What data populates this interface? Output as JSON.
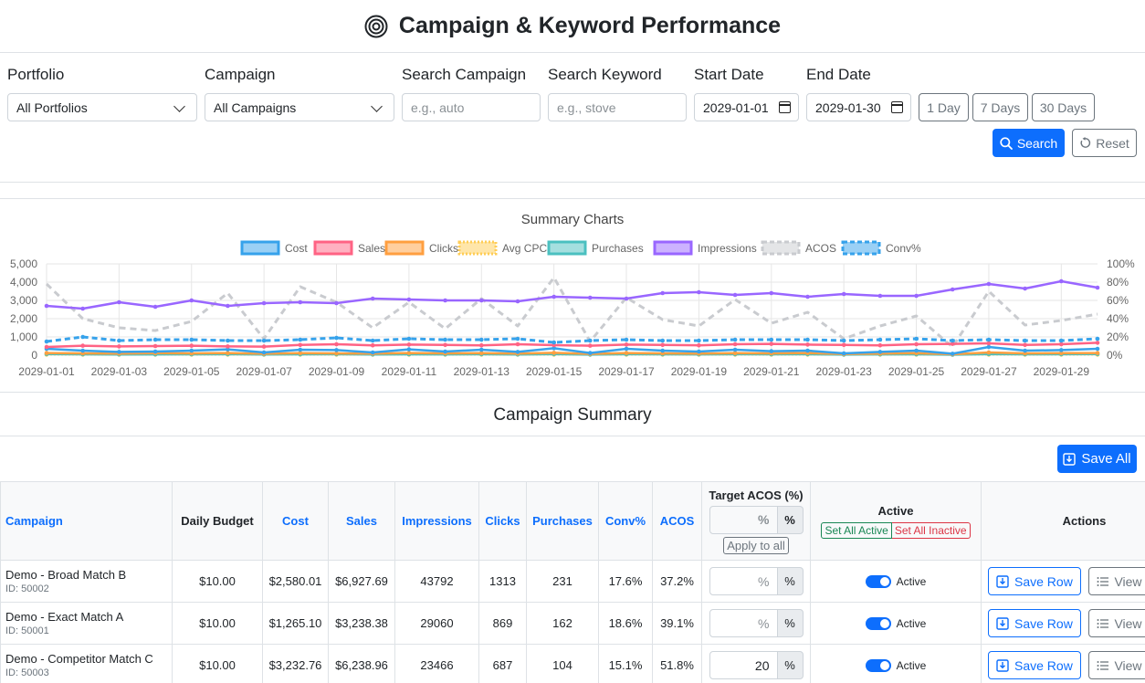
{
  "header": {
    "title": "Campaign & Keyword Performance"
  },
  "filters": {
    "portfolio_label": "Portfolio",
    "portfolio_value": "All Portfolios",
    "campaign_label": "Campaign",
    "campaign_value": "All Campaigns",
    "search_campaign_label": "Search Campaign",
    "search_campaign_placeholder": "e.g., auto",
    "search_keyword_label": "Search Keyword",
    "search_keyword_placeholder": "e.g., stove",
    "start_date_label": "Start Date",
    "start_date_value": "2029-01-01",
    "end_date_label": "End Date",
    "end_date_value": "2029-01-30",
    "quick_ranges": [
      "1 Day",
      "7 Days",
      "30 Days"
    ],
    "search_button": "Search",
    "reset_button": "Reset"
  },
  "chart_data": {
    "type": "line",
    "title": "Summary Charts",
    "x": [
      "2029-01-01",
      "2029-01-02",
      "2029-01-03",
      "2029-01-04",
      "2029-01-05",
      "2029-01-06",
      "2029-01-07",
      "2029-01-08",
      "2029-01-09",
      "2029-01-10",
      "2029-01-11",
      "2029-01-12",
      "2029-01-13",
      "2029-01-14",
      "2029-01-15",
      "2029-01-16",
      "2029-01-17",
      "2029-01-18",
      "2029-01-19",
      "2029-01-20",
      "2029-01-21",
      "2029-01-22",
      "2029-01-23",
      "2029-01-24",
      "2029-01-25",
      "2029-01-26",
      "2029-01-27",
      "2029-01-28",
      "2029-01-29",
      "2029-01-30"
    ],
    "x_tick_labels": [
      "2029-01-01",
      "2029-01-03",
      "2029-01-05",
      "2029-01-07",
      "2029-01-09",
      "2029-01-11",
      "2029-01-13",
      "2029-01-15",
      "2029-01-17",
      "2029-01-19",
      "2029-01-21",
      "2029-01-23",
      "2029-01-25",
      "2029-01-27",
      "2029-01-29"
    ],
    "y_left_ticks": [
      "0",
      "1,000",
      "2,000",
      "3,000",
      "4,000",
      "5,000"
    ],
    "y_right_ticks": [
      "0%",
      "20%",
      "40%",
      "60%",
      "80%",
      "100%"
    ],
    "ylim_left": [
      0,
      5000
    ],
    "ylim_right": [
      0,
      100
    ],
    "grid": true,
    "legend_position": "top",
    "series": [
      {
        "name": "Cost",
        "axis": "left",
        "color": "#36a2eb",
        "fill": "#9ad0f5",
        "style": "solid",
        "values": [
          350,
          250,
          180,
          200,
          250,
          320,
          150,
          300,
          280,
          150,
          320,
          200,
          300,
          180,
          380,
          120,
          350,
          250,
          200,
          300,
          220,
          250,
          100,
          180,
          250,
          80,
          450,
          250,
          280,
          350
        ]
      },
      {
        "name": "Sales",
        "axis": "left",
        "color": "#ff6384",
        "fill": "#ffb1c1",
        "style": "solid",
        "values": [
          450,
          520,
          480,
          500,
          520,
          480,
          470,
          560,
          600,
          540,
          580,
          560,
          540,
          600,
          550,
          520,
          580,
          560,
          540,
          600,
          620,
          580,
          560,
          540,
          600,
          620,
          650,
          560,
          600,
          680
        ]
      },
      {
        "name": "Clicks",
        "axis": "left",
        "color": "#ff9f40",
        "fill": "#ffcf9f",
        "style": "solid",
        "values": [
          120,
          100,
          90,
          110,
          100,
          120,
          80,
          110,
          100,
          90,
          120,
          100,
          110,
          90,
          130,
          70,
          120,
          100,
          90,
          110,
          100,
          120,
          60,
          90,
          110,
          50,
          150,
          100,
          110,
          120
        ]
      },
      {
        "name": "Avg CPC",
        "axis": "left",
        "color": "#ffcd56",
        "fill": "#ffe6aa",
        "style": "dotted",
        "values": [
          30,
          30,
          30,
          30,
          30,
          30,
          30,
          30,
          30,
          30,
          30,
          30,
          30,
          30,
          30,
          30,
          30,
          30,
          30,
          30,
          30,
          30,
          30,
          30,
          30,
          30,
          30,
          30,
          30,
          30
        ]
      },
      {
        "name": "Purchases",
        "axis": "left",
        "color": "#4bc0c0",
        "fill": "#a5dfdf",
        "style": "solid",
        "values": [
          60,
          50,
          40,
          45,
          50,
          55,
          40,
          50,
          55,
          40,
          50,
          45,
          55,
          40,
          60,
          30,
          55,
          50,
          45,
          55,
          50,
          55,
          30,
          45,
          50,
          25,
          60,
          50,
          55,
          60
        ]
      },
      {
        "name": "Impressions",
        "axis": "left",
        "color": "#9966ff",
        "fill": "#ccb2ff",
        "style": "solid",
        "values": [
          2700,
          2550,
          2900,
          2650,
          3000,
          2700,
          2850,
          2900,
          2850,
          3100,
          3050,
          3000,
          3000,
          2950,
          3200,
          3150,
          3100,
          3400,
          3450,
          3300,
          3400,
          3200,
          3350,
          3250,
          3250,
          3600,
          3900,
          3650,
          4050,
          3700
        ]
      },
      {
        "name": "ACOS",
        "axis": "right",
        "color": "#c9cbcf",
        "fill": "#e4e5e7",
        "style": "dashed",
        "values": [
          78,
          40,
          30,
          27,
          37,
          68,
          18,
          75,
          58,
          30,
          58,
          29,
          62,
          32,
          85,
          15,
          63,
          39,
          32,
          61,
          35,
          47,
          18,
          32,
          43,
          9,
          70,
          33,
          38,
          45
        ]
      },
      {
        "name": "Conv%",
        "axis": "right",
        "color": "#36a2eb",
        "fill": "#9ad0f5",
        "style": "dashed-thick",
        "values": [
          15,
          20,
          16,
          17,
          17,
          16,
          16,
          17,
          19,
          16,
          18,
          17,
          17,
          18,
          14,
          16,
          17,
          16,
          16,
          17,
          17,
          17,
          16,
          17,
          18,
          16,
          17,
          16,
          16,
          18
        ]
      }
    ]
  },
  "summary": {
    "title": "Campaign Summary",
    "save_all": "Save All",
    "columns": {
      "campaign": "Campaign",
      "daily_budget": "Daily Budget",
      "cost": "Cost",
      "sales": "Sales",
      "impressions": "Impressions",
      "clicks": "Clicks",
      "purchases": "Purchases",
      "conv": "Conv%",
      "acos": "ACOS",
      "target_acos": "Target ACOS (%)",
      "active": "Active",
      "actions": "Actions"
    },
    "header_acos_placeholder": "%",
    "percent_symbol": "%",
    "apply_to_all": "Apply to all",
    "set_all_active": "Set All Active",
    "set_all_inactive": "Set All Inactive",
    "save_row": "Save Row",
    "view": "View K",
    "rows": [
      {
        "name": "Demo - Broad Match B",
        "id": "ID: 50002",
        "budget": "$10.00",
        "cost": "$2,580.01",
        "sales": "$6,927.69",
        "impressions": "43792",
        "clicks": "1313",
        "purchases": "231",
        "conv": "17.6%",
        "acos": "37.2%",
        "target": "%",
        "active": "Active"
      },
      {
        "name": "Demo - Exact Match A",
        "id": "ID: 50001",
        "budget": "$10.00",
        "cost": "$1,265.10",
        "sales": "$3,238.38",
        "impressions": "29060",
        "clicks": "869",
        "purchases": "162",
        "conv": "18.6%",
        "acos": "39.1%",
        "target": "%",
        "active": "Active"
      },
      {
        "name": "Demo - Competitor Match C",
        "id": "ID: 50003",
        "budget": "$10.00",
        "cost": "$3,232.76",
        "sales": "$6,238.96",
        "impressions": "23466",
        "clicks": "687",
        "purchases": "104",
        "conv": "15.1%",
        "acos": "51.8%",
        "target": "20",
        "active": "Active"
      }
    ]
  }
}
